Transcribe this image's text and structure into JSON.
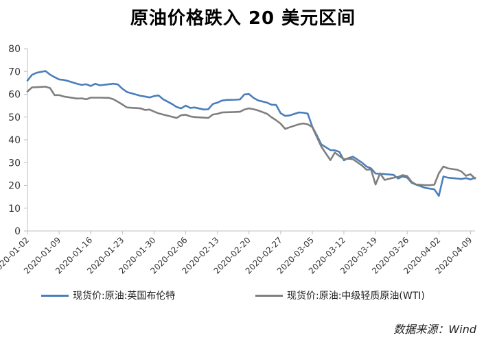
{
  "chart_data": {
    "type": "line",
    "title": "原油价格跌入 20 美元区间",
    "xlabel": "",
    "ylabel": "",
    "ylim": [
      0,
      80
    ],
    "yticks": [
      0,
      10,
      20,
      30,
      40,
      50,
      60,
      70,
      80
    ],
    "x_tick_labels": [
      "2020-01-02",
      "2020-01-09",
      "2020-01-16",
      "2020-01-23",
      "2020-01-30",
      "2020-02-06",
      "2020-02-13",
      "2020-02-20",
      "2020-02-27",
      "2020-03-05",
      "2020-03-12",
      "2020-03-19",
      "2020-03-26",
      "2020-04-02",
      "2020-04-09"
    ],
    "grid": false,
    "legend_position": "bottom",
    "x": [
      "2020-01-02",
      "2020-01-03",
      "2020-01-04",
      "2020-01-06",
      "2020-01-07",
      "2020-01-08",
      "2020-01-09",
      "2020-01-10",
      "2020-01-11",
      "2020-01-13",
      "2020-01-14",
      "2020-01-15",
      "2020-01-16",
      "2020-01-17",
      "2020-01-18",
      "2020-01-20",
      "2020-01-21",
      "2020-01-22",
      "2020-01-23",
      "2020-01-24",
      "2020-01-27",
      "2020-01-28",
      "2020-01-29",
      "2020-01-30",
      "2020-01-31",
      "2020-02-01",
      "2020-02-03",
      "2020-02-04",
      "2020-02-05",
      "2020-02-06",
      "2020-02-07",
      "2020-02-08",
      "2020-02-10",
      "2020-02-11",
      "2020-02-12",
      "2020-02-13",
      "2020-02-14",
      "2020-02-15",
      "2020-02-17",
      "2020-02-18",
      "2020-02-19",
      "2020-02-20",
      "2020-02-21",
      "2020-02-22",
      "2020-02-24",
      "2020-02-25",
      "2020-02-26",
      "2020-02-27",
      "2020-02-28",
      "2020-02-29",
      "2020-03-02",
      "2020-03-03",
      "2020-03-04",
      "2020-03-05",
      "2020-03-06",
      "2020-03-07",
      "2020-03-09",
      "2020-03-10",
      "2020-03-11",
      "2020-03-12",
      "2020-03-13",
      "2020-03-14",
      "2020-03-16",
      "2020-03-17",
      "2020-03-18",
      "2020-03-19",
      "2020-03-20",
      "2020-03-21",
      "2020-03-23",
      "2020-03-24",
      "2020-03-25",
      "2020-03-26",
      "2020-03-27",
      "2020-03-28",
      "2020-03-30",
      "2020-03-31",
      "2020-04-01",
      "2020-04-02",
      "2020-04-03",
      "2020-04-04",
      "2020-04-06",
      "2020-04-07",
      "2020-04-08",
      "2020-04-09",
      "2020-04-10"
    ],
    "series": [
      {
        "name": "现货价:原油:英国布伦特",
        "color": "#4a7ebb",
        "values": [
          66.0,
          68.5,
          69.4,
          70.2,
          68.6,
          67.5,
          66.5,
          66.3,
          65.8,
          64.6,
          64.1,
          64.4,
          63.6,
          64.6,
          63.9,
          64.4,
          64.6,
          64.3,
          62.4,
          61.0,
          59.3,
          59.0,
          58.6,
          59.2,
          59.5,
          57.8,
          55.7,
          54.4,
          53.8,
          55.0,
          54.0,
          54.2,
          53.3,
          53.4,
          55.7,
          56.3,
          57.2,
          57.5,
          57.6,
          57.7,
          59.9,
          60.1,
          58.4,
          57.3,
          56.3,
          55.4,
          55.3,
          51.7,
          50.5,
          50.7,
          52.0,
          51.9,
          51.5,
          45.8,
          42.0,
          38.0,
          35.5,
          35.4,
          34.7,
          31.0,
          32.0,
          32.6,
          30.0,
          28.3,
          27.5,
          25.2,
          25.1,
          25.0,
          24.6,
          23.0,
          23.9,
          23.4,
          21.1,
          20.3,
          18.9,
          18.6,
          18.3,
          15.4,
          23.9,
          23.4,
          23.0,
          22.8,
          23.2,
          22.6,
          23.4
        ]
      },
      {
        "name": "现货价:原油:中级轻质原油(WTI)",
        "color": "#7f7f7f",
        "values": [
          61.2,
          63.0,
          63.1,
          63.3,
          62.7,
          59.6,
          59.6,
          59.0,
          58.7,
          58.1,
          58.2,
          57.8,
          58.5,
          58.5,
          58.5,
          58.4,
          57.8,
          56.7,
          55.5,
          54.2,
          53.8,
          53.1,
          53.3,
          52.4,
          51.6,
          51.1,
          50.1,
          49.6,
          50.8,
          51.0,
          50.3,
          50.0,
          49.7,
          49.6,
          51.1,
          51.4,
          52.0,
          52.1,
          52.2,
          52.3,
          53.3,
          53.8,
          53.4,
          52.9,
          51.4,
          49.9,
          48.6,
          47.1,
          44.8,
          45.5,
          46.8,
          47.2,
          46.8,
          45.6,
          41.3,
          37.0,
          31.1,
          34.4,
          32.9,
          31.5,
          31.7,
          31.5,
          28.7,
          26.9,
          27.0,
          20.4,
          25.3,
          22.4,
          23.4,
          23.7,
          24.5,
          24.1,
          21.5,
          20.4,
          20.1,
          20.1,
          20.3,
          25.3,
          28.3,
          27.5,
          26.9,
          26.1,
          24.2,
          24.9,
          23.0
        ]
      }
    ]
  },
  "source_note": "数据来源：Wind"
}
